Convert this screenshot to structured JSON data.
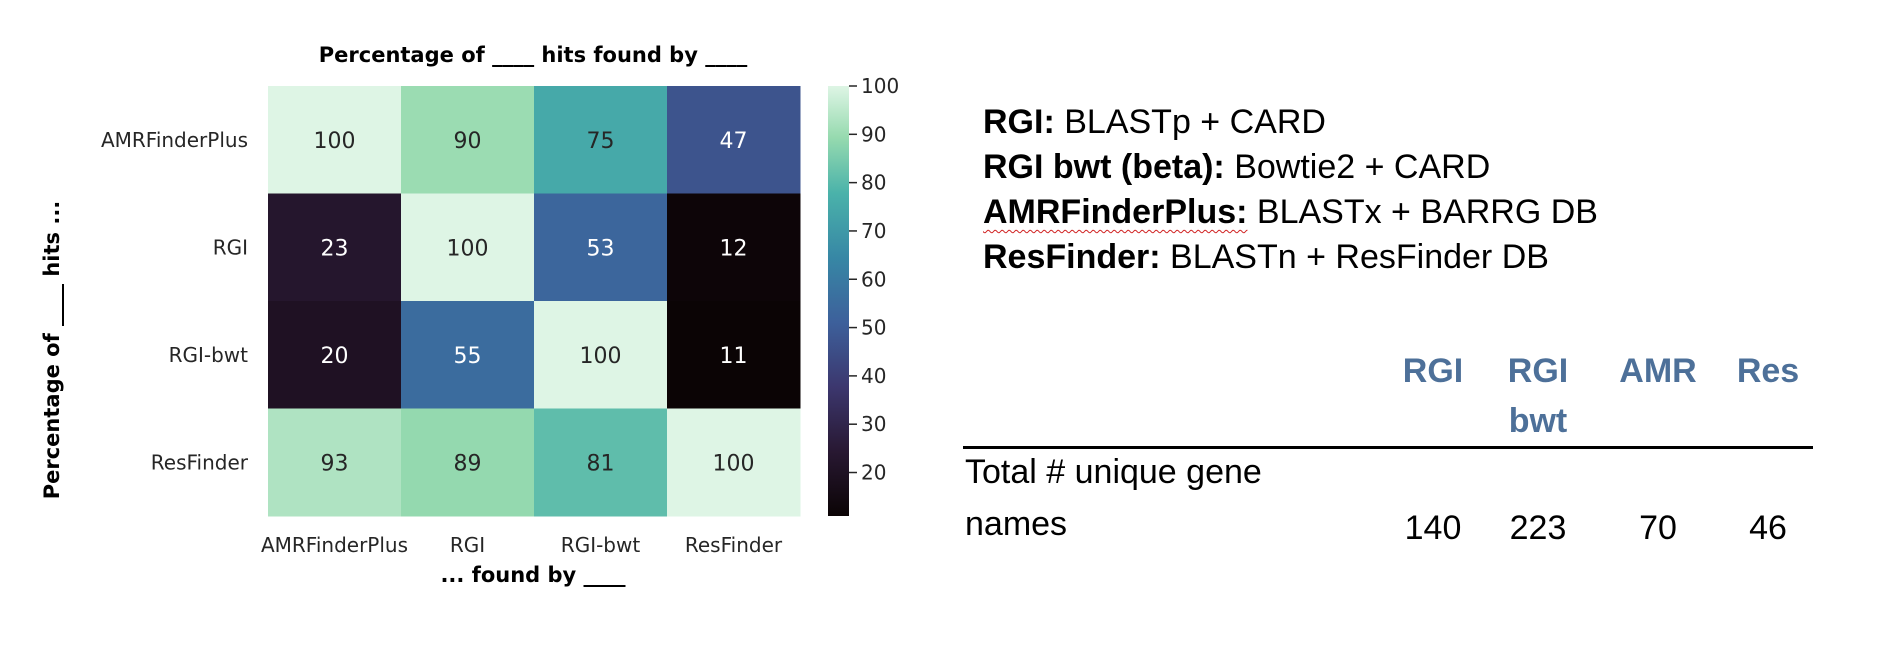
{
  "chart_data": {
    "type": "heatmap",
    "title": "Percentage of ____ hits found by ____",
    "xlabel": "... found by ____",
    "ylabel": "Percentage of ____ hits ...",
    "x_categories": [
      "AMRFinderPlus",
      "RGI",
      "RGI-bwt",
      "ResFinder"
    ],
    "y_categories": [
      "AMRFinderPlus",
      "RGI",
      "RGI-bwt",
      "ResFinder"
    ],
    "values": [
      [
        100,
        90,
        75,
        47
      ],
      [
        23,
        100,
        53,
        12
      ],
      [
        20,
        55,
        100,
        11
      ],
      [
        93,
        89,
        81,
        100
      ]
    ],
    "colorbar": {
      "ticks": [
        100,
        90,
        80,
        70,
        60,
        50,
        40,
        30,
        20
      ],
      "range": [
        11,
        100
      ]
    }
  },
  "legend": {
    "lines": [
      {
        "key": "RGI:",
        "value": " BLASTp + CARD"
      },
      {
        "key": "RGI bwt (beta):",
        "value": " Bowtie2 + CARD"
      },
      {
        "key": "AMRFinderPlus:",
        "value": " BLASTx + BARRG DB"
      },
      {
        "key": "ResFinder:",
        "value": " BLASTn + ResFinder DB"
      }
    ]
  },
  "summary_table": {
    "columns": [
      {
        "line1": "",
        "line2": "RGI"
      },
      {
        "line1": "RGI",
        "line2": "bwt"
      },
      {
        "line1": "",
        "line2": "AMR"
      },
      {
        "line1": "",
        "line2": "Res"
      }
    ],
    "row_label_line1": "Total # unique gene",
    "row_label_line2": "names",
    "values": [
      "140",
      "223",
      "70",
      "46"
    ]
  }
}
